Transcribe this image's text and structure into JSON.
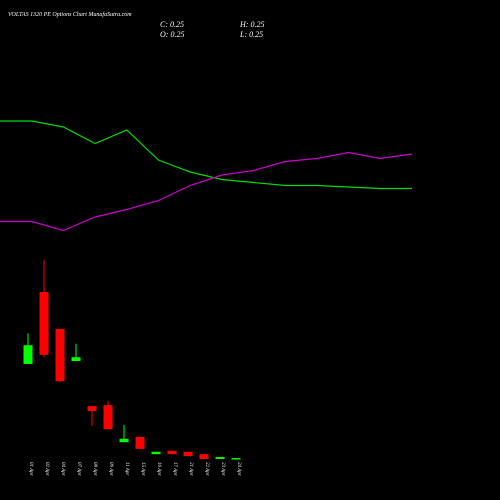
{
  "chart_data": {
    "type": "candlestick",
    "title": "VOLTAS 1320  PE Options  Chart MunafaSutra.com",
    "ohlc_labels": [
      "C: 0.25",
      "H: 0.25",
      "O: 0.25",
      "L: 0.25"
    ],
    "categories": [
      "01 Apr",
      "02 Apr",
      "04 Apr",
      "07 Apr",
      "08 Apr",
      "09 Apr",
      "11 Apr",
      "15 Apr",
      "16 Apr",
      "17 Apr",
      "21 Apr",
      "22 Apr",
      "23 Apr",
      "24 Apr"
    ],
    "open": [
      2.21,
      3.71,
      2.94,
      2.27,
      1.33,
      1.35,
      0.58,
      0.69,
      0.33,
      0.4,
      0.38,
      0.33,
      0.23,
      0.25
    ],
    "high": [
      2.85,
      4.38,
      2.94,
      2.63,
      1.33,
      1.44,
      0.94,
      0.69,
      0.38,
      0.4,
      0.38,
      0.33,
      0.27,
      0.25
    ],
    "low": [
      2.21,
      2.35,
      1.83,
      2.27,
      0.92,
      0.85,
      0.58,
      0.44,
      0.33,
      0.33,
      0.29,
      0.23,
      0.23,
      0.25
    ],
    "close": [
      2.6,
      2.4,
      1.85,
      2.35,
      1.23,
      0.85,
      0.65,
      0.44,
      0.38,
      0.33,
      0.29,
      0.23,
      0.27,
      0.25
    ],
    "up_color": "#00ff00",
    "down_color": "#ff0000",
    "lines": [
      {
        "color": "#00dd00",
        "values": [
          86,
          86,
          82,
          71,
          80,
          60,
          52,
          47,
          45,
          43,
          43,
          42,
          41,
          41
        ]
      },
      {
        "color": "#cc00cc",
        "values": [
          19,
          19,
          13,
          22,
          27,
          33,
          43,
          50,
          53,
          59,
          61,
          65,
          61,
          64
        ]
      }
    ]
  }
}
